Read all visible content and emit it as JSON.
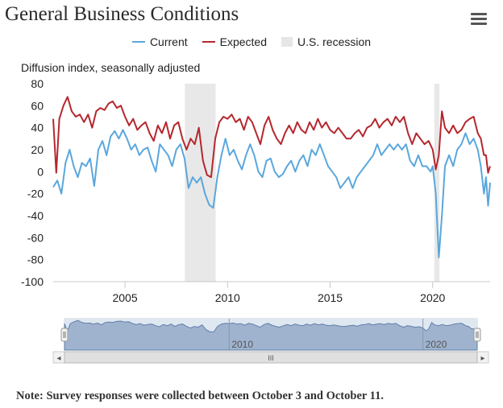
{
  "title": "General Business Conditions",
  "menu_icon": "hamburger-menu-icon",
  "legend": [
    {
      "label": "Current",
      "color": "#5aa7dc",
      "kind": "line"
    },
    {
      "label": "Expected",
      "color": "#b5272d",
      "kind": "line"
    },
    {
      "label": "U.S. recession",
      "color": "#e6e6e6",
      "kind": "box"
    }
  ],
  "ylabel": "Diffusion index, seasonally adjusted",
  "navigator": {
    "labels": [
      "2010",
      "2020"
    ],
    "scroll_grip": "III",
    "left_arrow": "◂",
    "right_arrow": "▸"
  },
  "note": "Note: Survey responses were collected between October 3 and October 11.",
  "chart_data": {
    "type": "line",
    "ylabel": "Diffusion index, seasonally adjusted",
    "ylim": [
      -100,
      80
    ],
    "yticks": [
      80,
      60,
      40,
      20,
      0,
      -20,
      -40,
      -60,
      -80,
      -100
    ],
    "xlim": [
      2001.5,
      2022.8
    ],
    "xticks": [
      2005,
      2010,
      2015,
      2020
    ],
    "grid": false,
    "legend_position": "top-center",
    "recessions": [
      [
        2007.92,
        2009.42
      ],
      [
        2020.08,
        2020.33
      ]
    ],
    "series": [
      {
        "name": "Current",
        "color": "#5aa7dc",
        "points": [
          [
            2001.5,
            -14
          ],
          [
            2001.7,
            -8
          ],
          [
            2001.9,
            -20
          ],
          [
            2002.1,
            8
          ],
          [
            2002.3,
            20
          ],
          [
            2002.5,
            5
          ],
          [
            2002.7,
            -5
          ],
          [
            2002.9,
            8
          ],
          [
            2003.1,
            5
          ],
          [
            2003.3,
            12
          ],
          [
            2003.5,
            -13
          ],
          [
            2003.7,
            20
          ],
          [
            2003.9,
            28
          ],
          [
            2004.1,
            15
          ],
          [
            2004.3,
            32
          ],
          [
            2004.5,
            37
          ],
          [
            2004.7,
            30
          ],
          [
            2004.9,
            38
          ],
          [
            2005.1,
            30
          ],
          [
            2005.3,
            20
          ],
          [
            2005.5,
            25
          ],
          [
            2005.7,
            15
          ],
          [
            2005.9,
            20
          ],
          [
            2006.1,
            22
          ],
          [
            2006.3,
            10
          ],
          [
            2006.5,
            0
          ],
          [
            2006.7,
            25
          ],
          [
            2006.9,
            20
          ],
          [
            2007.1,
            15
          ],
          [
            2007.3,
            5
          ],
          [
            2007.5,
            20
          ],
          [
            2007.7,
            25
          ],
          [
            2007.9,
            12
          ],
          [
            2008.1,
            -15
          ],
          [
            2008.3,
            -5
          ],
          [
            2008.5,
            -10
          ],
          [
            2008.7,
            -5
          ],
          [
            2008.9,
            -20
          ],
          [
            2009.1,
            -30
          ],
          [
            2009.3,
            -33
          ],
          [
            2009.5,
            -5
          ],
          [
            2009.7,
            15
          ],
          [
            2009.9,
            30
          ],
          [
            2010.1,
            15
          ],
          [
            2010.3,
            20
          ],
          [
            2010.5,
            10
          ],
          [
            2010.7,
            2
          ],
          [
            2010.9,
            15
          ],
          [
            2011.1,
            25
          ],
          [
            2011.3,
            15
          ],
          [
            2011.5,
            0
          ],
          [
            2011.7,
            -5
          ],
          [
            2011.9,
            10
          ],
          [
            2012.1,
            12
          ],
          [
            2012.3,
            0
          ],
          [
            2012.5,
            -5
          ],
          [
            2012.7,
            -2
          ],
          [
            2012.9,
            5
          ],
          [
            2013.1,
            10
          ],
          [
            2013.3,
            0
          ],
          [
            2013.5,
            10
          ],
          [
            2013.7,
            15
          ],
          [
            2013.9,
            5
          ],
          [
            2014.1,
            20
          ],
          [
            2014.3,
            15
          ],
          [
            2014.5,
            25
          ],
          [
            2014.7,
            15
          ],
          [
            2014.9,
            5
          ],
          [
            2015.1,
            0
          ],
          [
            2015.3,
            -5
          ],
          [
            2015.5,
            -15
          ],
          [
            2015.7,
            -10
          ],
          [
            2015.9,
            -5
          ],
          [
            2016.1,
            -15
          ],
          [
            2016.3,
            -5
          ],
          [
            2016.5,
            0
          ],
          [
            2016.7,
            5
          ],
          [
            2016.9,
            10
          ],
          [
            2017.1,
            15
          ],
          [
            2017.3,
            25
          ],
          [
            2017.5,
            15
          ],
          [
            2017.7,
            20
          ],
          [
            2017.9,
            25
          ],
          [
            2018.1,
            20
          ],
          [
            2018.3,
            25
          ],
          [
            2018.5,
            20
          ],
          [
            2018.7,
            25
          ],
          [
            2018.9,
            10
          ],
          [
            2019.1,
            5
          ],
          [
            2019.3,
            15
          ],
          [
            2019.5,
            5
          ],
          [
            2019.7,
            5
          ],
          [
            2019.9,
            0
          ],
          [
            2020.0,
            5
          ],
          [
            2020.15,
            -20
          ],
          [
            2020.3,
            -78
          ],
          [
            2020.45,
            -40
          ],
          [
            2020.6,
            5
          ],
          [
            2020.8,
            15
          ],
          [
            2021.0,
            5
          ],
          [
            2021.2,
            20
          ],
          [
            2021.4,
            25
          ],
          [
            2021.6,
            35
          ],
          [
            2021.8,
            25
          ],
          [
            2022.0,
            30
          ],
          [
            2022.2,
            20
          ],
          [
            2022.35,
            5
          ],
          [
            2022.5,
            -20
          ],
          [
            2022.6,
            -5
          ],
          [
            2022.7,
            -31
          ],
          [
            2022.8,
            -10
          ]
        ]
      },
      {
        "name": "Expected",
        "color": "#b5272d",
        "points": [
          [
            2001.5,
            48
          ],
          [
            2001.65,
            -1
          ],
          [
            2001.8,
            48
          ],
          [
            2002.0,
            60
          ],
          [
            2002.2,
            68
          ],
          [
            2002.4,
            55
          ],
          [
            2002.6,
            50
          ],
          [
            2002.8,
            52
          ],
          [
            2003.0,
            45
          ],
          [
            2003.2,
            52
          ],
          [
            2003.4,
            40
          ],
          [
            2003.6,
            55
          ],
          [
            2003.8,
            58
          ],
          [
            2004.0,
            56
          ],
          [
            2004.2,
            62
          ],
          [
            2004.4,
            64
          ],
          [
            2004.6,
            58
          ],
          [
            2004.8,
            60
          ],
          [
            2005.0,
            50
          ],
          [
            2005.2,
            42
          ],
          [
            2005.4,
            48
          ],
          [
            2005.6,
            38
          ],
          [
            2005.8,
            42
          ],
          [
            2006.0,
            45
          ],
          [
            2006.2,
            35
          ],
          [
            2006.4,
            28
          ],
          [
            2006.6,
            42
          ],
          [
            2006.8,
            35
          ],
          [
            2007.0,
            45
          ],
          [
            2007.2,
            30
          ],
          [
            2007.4,
            42
          ],
          [
            2007.6,
            45
          ],
          [
            2007.8,
            30
          ],
          [
            2008.0,
            20
          ],
          [
            2008.2,
            30
          ],
          [
            2008.4,
            25
          ],
          [
            2008.6,
            40
          ],
          [
            2008.8,
            10
          ],
          [
            2009.0,
            -3
          ],
          [
            2009.2,
            -5
          ],
          [
            2009.4,
            30
          ],
          [
            2009.6,
            45
          ],
          [
            2009.8,
            50
          ],
          [
            2010.0,
            48
          ],
          [
            2010.2,
            52
          ],
          [
            2010.4,
            45
          ],
          [
            2010.6,
            48
          ],
          [
            2010.8,
            38
          ],
          [
            2011.0,
            50
          ],
          [
            2011.2,
            45
          ],
          [
            2011.4,
            35
          ],
          [
            2011.6,
            25
          ],
          [
            2011.8,
            42
          ],
          [
            2012.0,
            50
          ],
          [
            2012.2,
            38
          ],
          [
            2012.4,
            30
          ],
          [
            2012.6,
            25
          ],
          [
            2012.8,
            35
          ],
          [
            2013.0,
            42
          ],
          [
            2013.2,
            35
          ],
          [
            2013.4,
            45
          ],
          [
            2013.6,
            38
          ],
          [
            2013.8,
            35
          ],
          [
            2014.0,
            45
          ],
          [
            2014.2,
            38
          ],
          [
            2014.4,
            48
          ],
          [
            2014.6,
            40
          ],
          [
            2014.8,
            45
          ],
          [
            2015.0,
            38
          ],
          [
            2015.2,
            35
          ],
          [
            2015.4,
            40
          ],
          [
            2015.6,
            35
          ],
          [
            2015.8,
            30
          ],
          [
            2016.0,
            30
          ],
          [
            2016.2,
            35
          ],
          [
            2016.4,
            38
          ],
          [
            2016.6,
            32
          ],
          [
            2016.8,
            40
          ],
          [
            2017.0,
            42
          ],
          [
            2017.2,
            48
          ],
          [
            2017.4,
            40
          ],
          [
            2017.6,
            45
          ],
          [
            2017.8,
            48
          ],
          [
            2018.0,
            42
          ],
          [
            2018.2,
            50
          ],
          [
            2018.4,
            45
          ],
          [
            2018.6,
            50
          ],
          [
            2018.8,
            35
          ],
          [
            2019.0,
            25
          ],
          [
            2019.2,
            35
          ],
          [
            2019.4,
            30
          ],
          [
            2019.6,
            25
          ],
          [
            2019.8,
            28
          ],
          [
            2020.0,
            20
          ],
          [
            2020.15,
            2
          ],
          [
            2020.3,
            15
          ],
          [
            2020.45,
            55
          ],
          [
            2020.6,
            40
          ],
          [
            2020.8,
            35
          ],
          [
            2021.0,
            42
          ],
          [
            2021.2,
            35
          ],
          [
            2021.4,
            38
          ],
          [
            2021.6,
            45
          ],
          [
            2021.8,
            48
          ],
          [
            2022.0,
            50
          ],
          [
            2022.2,
            35
          ],
          [
            2022.35,
            30
          ],
          [
            2022.5,
            15
          ],
          [
            2022.6,
            15
          ],
          [
            2022.7,
            -1
          ],
          [
            2022.8,
            5
          ]
        ]
      }
    ]
  }
}
